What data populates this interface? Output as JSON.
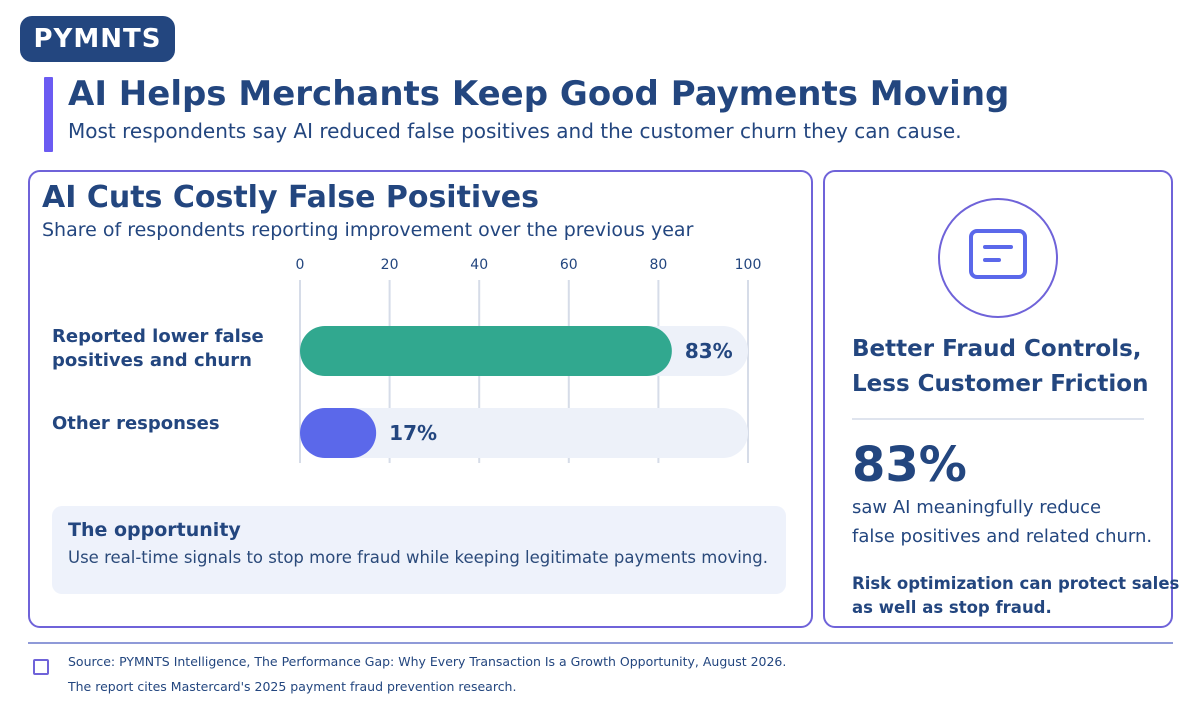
{
  "brand": {
    "logo_text": "PYMNTS"
  },
  "header": {
    "title": "AI Helps Merchants Keep Good Payments Moving",
    "subtitle": "Most respondents say AI reduced false positives and the customer churn they can cause."
  },
  "chart_data": {
    "type": "bar",
    "orientation": "horizontal",
    "title": "AI Cuts Costly False Positives",
    "subtitle": "Share of respondents reporting improvement over the previous year",
    "categories": [
      "Reported lower false positives and churn",
      "Other responses"
    ],
    "category_lines": [
      [
        "Reported lower false",
        "positives and churn"
      ],
      [
        "Other responses"
      ]
    ],
    "values": [
      83,
      17
    ],
    "value_labels": [
      "83%",
      "17%"
    ],
    "bar_colors": [
      "#31a88f",
      "#5b68ea"
    ],
    "track_color": "#edf1f9",
    "xlim": [
      0,
      100
    ],
    "xticks": [
      0,
      20,
      40,
      60,
      80,
      100
    ],
    "grid": true,
    "legend": "none"
  },
  "opportunity": {
    "title": "The opportunity",
    "text": "Use real-time signals to stop more fraud while keeping legitimate payments moving."
  },
  "sidebar": {
    "icon": "document-icon",
    "heading_line1": "Better Fraud Controls,",
    "heading_line2": "Less Customer Friction",
    "stat": "83%",
    "desc_line1": "saw AI meaningfully reduce",
    "desc_line2": "false positives and related churn.",
    "note_line1": "Risk optimization can protect sales",
    "note_line2": "as well as stop fraud."
  },
  "footer": {
    "source": "Source: PYMNTS Intelligence, The Performance Gap: Why Every Transaction Is a Growth Opportunity, August 2026.",
    "note": "The report cites Mastercard's 2025 payment fraud prevention research."
  },
  "colors": {
    "navy": "#23467f",
    "accent": "#6b5bf2",
    "border": "#6f63d9",
    "teal": "#31a88f",
    "blue": "#5b68ea"
  }
}
